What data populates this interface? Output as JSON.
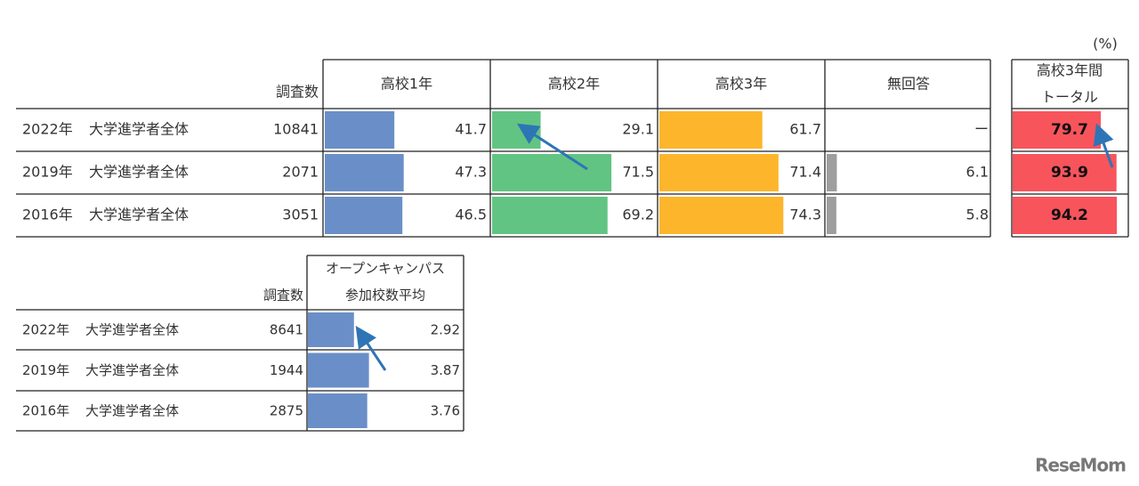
{
  "unit": "(%)",
  "table1": {
    "header": {
      "count": "調査数",
      "columns": [
        "高校1年",
        "高校2年",
        "高校3年",
        "無回答"
      ],
      "total": [
        "高校3年間",
        "トータル"
      ]
    },
    "rows": [
      {
        "year": "2022年",
        "group": "大学進学者全体",
        "count": 10841,
        "values": [
          41.7,
          29.1,
          61.7,
          "ー"
        ],
        "total": 79.7
      },
      {
        "year": "2019年",
        "group": "大学進学者全体",
        "count": 2071,
        "values": [
          47.3,
          71.5,
          71.4,
          6.1
        ],
        "total": 93.9
      },
      {
        "year": "2016年",
        "group": "大学進学者全体",
        "count": 3051,
        "values": [
          46.5,
          69.2,
          74.3,
          5.8
        ],
        "total": 94.2
      }
    ]
  },
  "table2": {
    "header": {
      "count": "調査数",
      "column": [
        "オープンキャンパス",
        "参加校数平均"
      ]
    },
    "rows": [
      {
        "year": "2022年",
        "group": "大学進学者全体",
        "count": 8641,
        "value": 2.92
      },
      {
        "year": "2019年",
        "group": "大学進学者全体",
        "count": 1944,
        "value": 3.87
      },
      {
        "year": "2016年",
        "group": "大学進学者全体",
        "count": 2875,
        "value": 3.76
      }
    ]
  },
  "logo": "ReseMom"
}
